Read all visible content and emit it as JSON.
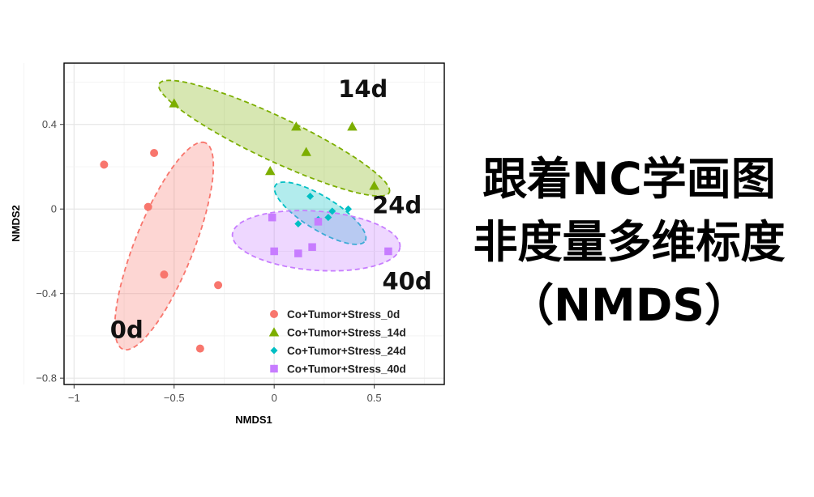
{
  "chart_data": {
    "type": "scatter",
    "xlabel": "NMDS1",
    "ylabel": "NMDS2",
    "xlim": [
      -1.05,
      0.85
    ],
    "ylim": [
      -0.83,
      0.69
    ],
    "xticks": [
      -1,
      -0.5,
      0,
      0.5
    ],
    "xtick_labels": [
      "−1",
      "−0.5",
      "0",
      "0.5"
    ],
    "yticks": [
      -0.8,
      -0.4,
      0,
      0.4
    ],
    "ytick_labels": [
      "−0.8",
      "−0.4",
      "0",
      "0.4"
    ],
    "grid": true,
    "legend_position": "bottom-right",
    "series": [
      {
        "name": "Co+Tumor+Stress_0d",
        "color": "#F8766D",
        "marker": "circle",
        "ellipse": {
          "cx": -0.55,
          "cy": -0.175,
          "rx": 0.53,
          "ry": 0.145,
          "angle_deg": 67
        },
        "points": [
          {
            "x": -0.85,
            "y": 0.21
          },
          {
            "x": -0.6,
            "y": 0.265
          },
          {
            "x": -0.63,
            "y": 0.01
          },
          {
            "x": -0.55,
            "y": -0.31
          },
          {
            "x": -0.28,
            "y": -0.36
          },
          {
            "x": -0.37,
            "y": -0.66
          }
        ]
      },
      {
        "name": "Co+Tumor+Stress_14d",
        "color": "#7CAE00",
        "marker": "triangle",
        "ellipse": {
          "cx": 0.0,
          "cy": 0.335,
          "rx": 0.63,
          "ry": 0.105,
          "angle_deg": -24
        },
        "points": [
          {
            "x": -0.5,
            "y": 0.5
          },
          {
            "x": 0.11,
            "y": 0.39
          },
          {
            "x": 0.39,
            "y": 0.39
          },
          {
            "x": 0.16,
            "y": 0.27
          },
          {
            "x": -0.02,
            "y": 0.18
          },
          {
            "x": 0.5,
            "y": 0.11
          }
        ]
      },
      {
        "name": "Co+Tumor+Stress_24d",
        "color": "#00BFC4",
        "marker": "diamond",
        "ellipse": {
          "cx": 0.23,
          "cy": -0.02,
          "rx": 0.26,
          "ry": 0.08,
          "angle_deg": -30
        },
        "points": [
          {
            "x": 0.18,
            "y": 0.06
          },
          {
            "x": 0.37,
            "y": 0.0
          },
          {
            "x": 0.29,
            "y": -0.01
          },
          {
            "x": 0.27,
            "y": -0.04
          },
          {
            "x": 0.12,
            "y": -0.07
          },
          {
            "x": 0.22,
            "y": -0.05
          }
        ]
      },
      {
        "name": "Co+Tumor+Stress_40d",
        "color": "#C77CFF",
        "marker": "square",
        "ellipse": {
          "cx": 0.21,
          "cy": -0.15,
          "rx": 0.42,
          "ry": 0.14,
          "angle_deg": -4
        },
        "points": [
          {
            "x": -0.01,
            "y": -0.04
          },
          {
            "x": 0.22,
            "y": -0.06
          },
          {
            "x": 0.57,
            "y": -0.2
          },
          {
            "x": 0.19,
            "y": -0.18
          },
          {
            "x": 0.0,
            "y": -0.2
          },
          {
            "x": 0.12,
            "y": -0.21
          }
        ]
      }
    ],
    "annotations": [
      {
        "text": "14d",
        "x": 0.32,
        "y": 0.53
      },
      {
        "text": "24d",
        "x": 0.49,
        "y": -0.02
      },
      {
        "text": "40d",
        "x": 0.54,
        "y": -0.38
      },
      {
        "text": "0d",
        "x": -0.82,
        "y": -0.61
      }
    ]
  },
  "heading": {
    "line1": "跟着NC学画图",
    "line2": "非度量多维标度",
    "line3": "（NMDS）"
  }
}
